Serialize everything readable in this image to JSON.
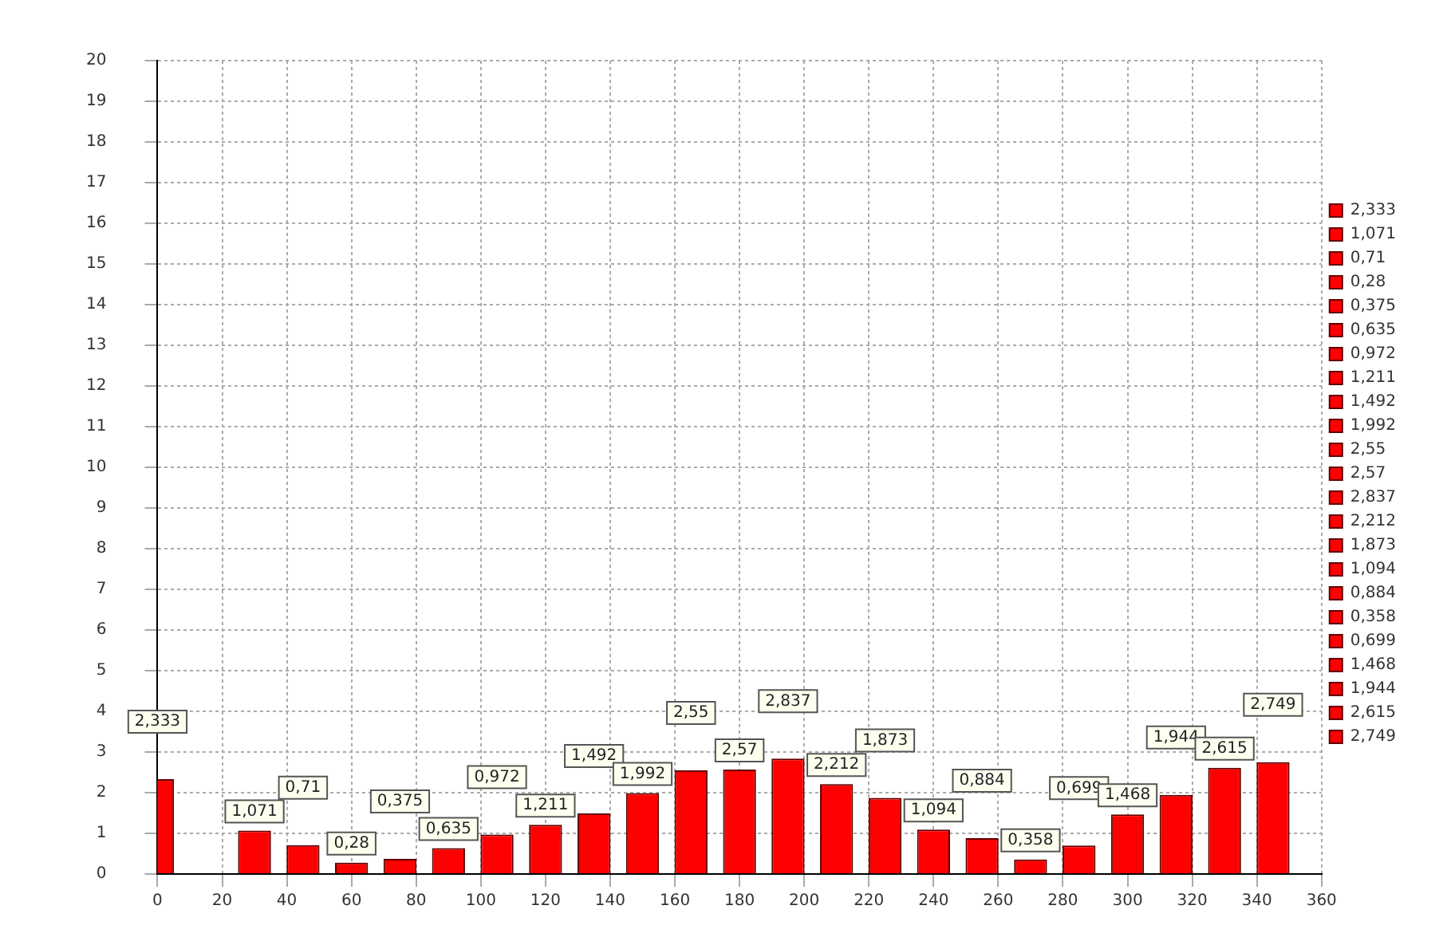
{
  "chart_data": {
    "type": "bar",
    "series": [
      {
        "name": "2,333",
        "color": "#ff0000",
        "x": [
          0
        ],
        "values": [
          2.333
        ],
        "value_labels": [
          "2,333"
        ]
      },
      {
        "name": "1,071",
        "color": "#ff0000",
        "x": [
          30
        ],
        "values": [
          1.071
        ],
        "value_labels": [
          "1,071"
        ]
      },
      {
        "name": "0,71",
        "color": "#ff0000",
        "x": [
          45
        ],
        "values": [
          0.71
        ],
        "value_labels": [
          "0,71"
        ]
      },
      {
        "name": "0,28",
        "color": "#ff0000",
        "x": [
          60
        ],
        "values": [
          0.28
        ],
        "value_labels": [
          "0,28"
        ]
      },
      {
        "name": "0,375",
        "color": "#ff0000",
        "x": [
          75
        ],
        "values": [
          0.375
        ],
        "value_labels": [
          "0,375"
        ]
      },
      {
        "name": "0,635",
        "color": "#ff0000",
        "x": [
          90
        ],
        "values": [
          0.635
        ],
        "value_labels": [
          "0,635"
        ]
      },
      {
        "name": "0,972",
        "color": "#ff0000",
        "x": [
          105
        ],
        "values": [
          0.972
        ],
        "value_labels": [
          "0,972"
        ]
      },
      {
        "name": "1,211",
        "color": "#ff0000",
        "x": [
          120
        ],
        "values": [
          1.211
        ],
        "value_labels": [
          "1,211"
        ]
      },
      {
        "name": "1,492",
        "color": "#ff0000",
        "x": [
          135
        ],
        "values": [
          1.492
        ],
        "value_labels": [
          "1,492"
        ]
      },
      {
        "name": "1,992",
        "color": "#ff0000",
        "x": [
          150
        ],
        "values": [
          1.992
        ],
        "value_labels": [
          "1,992"
        ]
      },
      {
        "name": "2,55",
        "color": "#ff0000",
        "x": [
          165
        ],
        "values": [
          2.55
        ],
        "value_labels": [
          "2,55"
        ]
      },
      {
        "name": "2,57",
        "color": "#ff0000",
        "x": [
          180
        ],
        "values": [
          2.57
        ],
        "value_labels": [
          "2,57"
        ]
      },
      {
        "name": "2,837",
        "color": "#ff0000",
        "x": [
          195
        ],
        "values": [
          2.837
        ],
        "value_labels": [
          "2,837"
        ]
      },
      {
        "name": "2,212",
        "color": "#ff0000",
        "x": [
          210
        ],
        "values": [
          2.212
        ],
        "value_labels": [
          "2,212"
        ]
      },
      {
        "name": "1,873",
        "color": "#ff0000",
        "x": [
          225
        ],
        "values": [
          1.873
        ],
        "value_labels": [
          "1,873"
        ]
      },
      {
        "name": "1,094",
        "color": "#ff0000",
        "x": [
          240
        ],
        "values": [
          1.094
        ],
        "value_labels": [
          "1,094"
        ]
      },
      {
        "name": "0,884",
        "color": "#ff0000",
        "x": [
          255
        ],
        "values": [
          0.884
        ],
        "value_labels": [
          "0,884"
        ]
      },
      {
        "name": "0,358",
        "color": "#ff0000",
        "x": [
          270
        ],
        "values": [
          0.358
        ],
        "value_labels": [
          "0,358"
        ]
      },
      {
        "name": "0,699",
        "color": "#ff0000",
        "x": [
          285
        ],
        "values": [
          0.699
        ],
        "value_labels": [
          "0,699"
        ]
      },
      {
        "name": "1,468",
        "color": "#ff0000",
        "x": [
          300
        ],
        "values": [
          1.468
        ],
        "value_labels": [
          "1,468"
        ]
      },
      {
        "name": "1,944",
        "color": "#ff0000",
        "x": [
          315
        ],
        "values": [
          1.944
        ],
        "value_labels": [
          "1,944"
        ]
      },
      {
        "name": "2,615",
        "color": "#ff0000",
        "x": [
          330
        ],
        "values": [
          2.615
        ],
        "value_labels": [
          "2,615"
        ]
      },
      {
        "name": "2,749",
        "color": "#ff0000",
        "x": [
          345
        ],
        "values": [
          2.749
        ],
        "value_labels": [
          "2,749"
        ]
      }
    ],
    "xlim": [
      0,
      360
    ],
    "xticks": [
      0,
      20,
      40,
      60,
      80,
      100,
      120,
      140,
      160,
      180,
      200,
      220,
      240,
      260,
      280,
      300,
      320,
      340,
      360
    ],
    "ylim": [
      0,
      20
    ],
    "yticks": [
      0,
      1,
      2,
      3,
      4,
      5,
      6,
      7,
      8,
      9,
      10,
      11,
      12,
      13,
      14,
      15,
      16,
      17,
      18,
      19,
      20
    ],
    "grid": true,
    "legend": "right"
  }
}
